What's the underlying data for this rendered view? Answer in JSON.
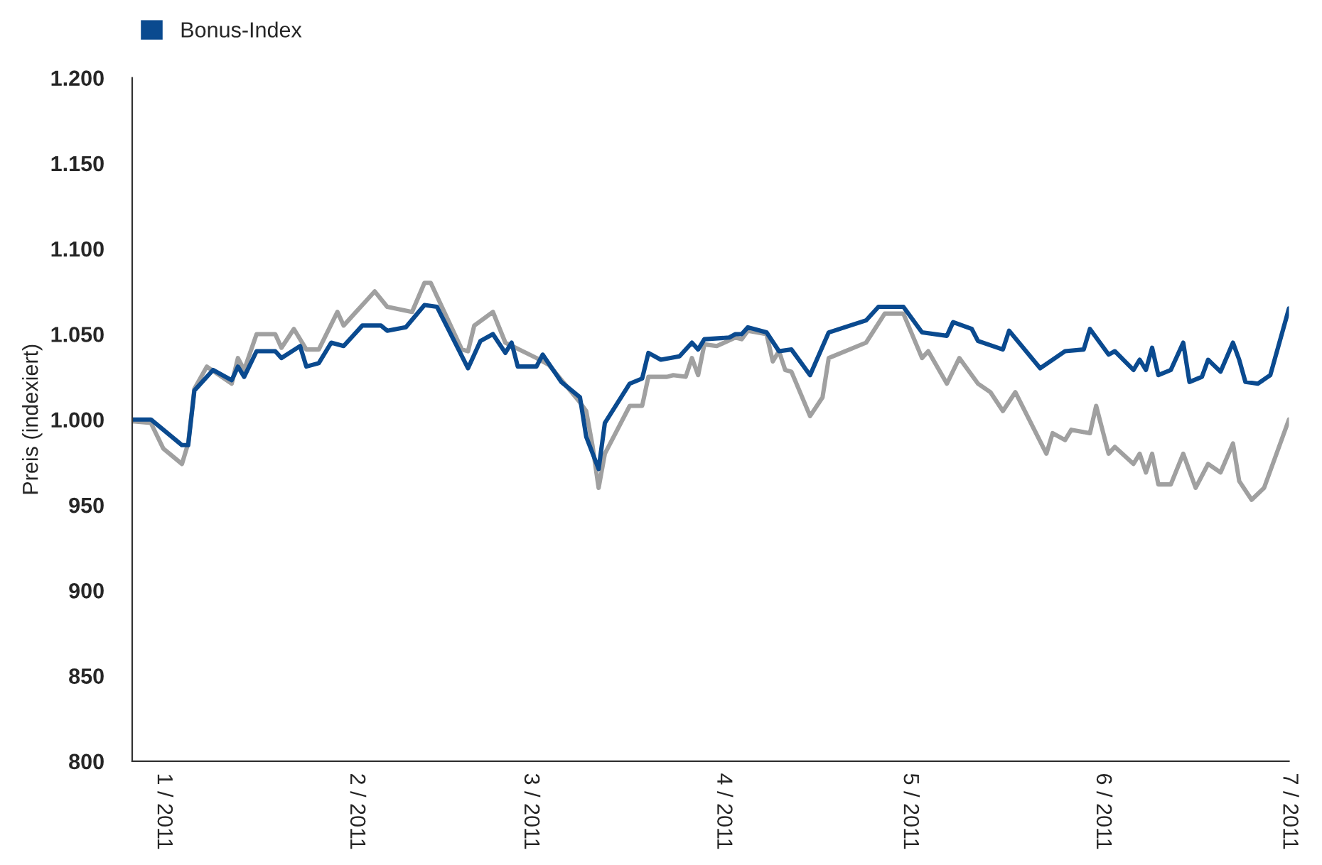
{
  "chart_data": {
    "type": "line",
    "ylabel": "Preis (indexiert)",
    "xlim": [
      "2010-12-27",
      "2011-07-01"
    ],
    "xticks": [
      {
        "value": "2011-01-01",
        "label": "1 / 2011"
      },
      {
        "value": "2011-02-01",
        "label": "2 / 2011"
      },
      {
        "value": "2011-03-01",
        "label": "3 / 2011"
      },
      {
        "value": "2011-04-01",
        "label": "4 / 2011"
      },
      {
        "value": "2011-05-01",
        "label": "5 / 2011"
      },
      {
        "value": "2011-06-01",
        "label": "6 / 2011"
      },
      {
        "value": "2011-07-01",
        "label": "7 / 2011"
      }
    ],
    "ylim": [
      800,
      1200
    ],
    "yticks": [
      {
        "value": 800,
        "label": "800"
      },
      {
        "value": 850,
        "label": "850"
      },
      {
        "value": 900,
        "label": "900"
      },
      {
        "value": 950,
        "label": "950"
      },
      {
        "value": 1000,
        "label": "1.000"
      },
      {
        "value": 1050,
        "label": "1.050"
      },
      {
        "value": 1100,
        "label": "1.100"
      },
      {
        "value": 1150,
        "label": "1.150"
      },
      {
        "value": 1200,
        "label": "1.200"
      }
    ],
    "grid": false,
    "legend": "top left",
    "marker": "none",
    "line_style": "solid",
    "series": [
      {
        "color": "#a0a0a0",
        "x": [
          "2010-12-27",
          "2010-12-30",
          "2011-01-01",
          "2011-01-04",
          "2011-01-05",
          "2011-01-06",
          "2011-01-08",
          "2011-01-12",
          "2011-01-13",
          "2011-01-14",
          "2011-01-16",
          "2011-01-19",
          "2011-01-20",
          "2011-01-22",
          "2011-01-24",
          "2011-01-26",
          "2011-01-29",
          "2011-01-30",
          "2011-02-01",
          "2011-02-04",
          "2011-02-06",
          "2011-02-10",
          "2011-02-12",
          "2011-02-13",
          "2011-02-18",
          "2011-02-19",
          "2011-02-20",
          "2011-02-23",
          "2011-02-25",
          "2011-03-02",
          "2011-03-04",
          "2011-03-09",
          "2011-03-10",
          "2011-03-11",
          "2011-03-12",
          "2011-03-13",
          "2011-03-17",
          "2011-03-19",
          "2011-03-20",
          "2011-03-23",
          "2011-03-24",
          "2011-03-26",
          "2011-03-27",
          "2011-03-28",
          "2011-03-29",
          "2011-03-31",
          "2011-04-03",
          "2011-04-04",
          "2011-04-05",
          "2011-04-08",
          "2011-04-09",
          "2011-04-10",
          "2011-04-11",
          "2011-04-12",
          "2011-04-15",
          "2011-04-17",
          "2011-04-18",
          "2011-04-24",
          "2011-04-27",
          "2011-04-30",
          "2011-05-03",
          "2011-05-04",
          "2011-05-07",
          "2011-05-09",
          "2011-05-12",
          "2011-05-14",
          "2011-05-16",
          "2011-05-18",
          "2011-05-23",
          "2011-05-24",
          "2011-05-26",
          "2011-05-27",
          "2011-05-30",
          "2011-05-31",
          "2011-06-02",
          "2011-06-03",
          "2011-06-06",
          "2011-06-07",
          "2011-06-08",
          "2011-06-09",
          "2011-06-10",
          "2011-06-12",
          "2011-06-14",
          "2011-06-16",
          "2011-06-18",
          "2011-06-20",
          "2011-06-22",
          "2011-06-23",
          "2011-06-25",
          "2011-06-27",
          "2011-07-01"
        ],
        "values": [
          999,
          998,
          983,
          974,
          986,
          1018,
          1031,
          1021,
          1036,
          1029,
          1050,
          1050,
          1042,
          1053,
          1041,
          1041,
          1063,
          1055,
          1063,
          1075,
          1066,
          1063,
          1080,
          1080,
          1041,
          1040,
          1055,
          1063,
          1045,
          1036,
          1032,
          1010,
          1005,
          985,
          960,
          980,
          1008,
          1008,
          1025,
          1025,
          1026,
          1025,
          1036,
          1026,
          1044,
          1043,
          1048,
          1047,
          1052,
          1050,
          1034,
          1040,
          1029,
          1028,
          1002,
          1013,
          1036,
          1045,
          1062,
          1062,
          1036,
          1040,
          1021,
          1036,
          1021,
          1016,
          1005,
          1016,
          980,
          992,
          988,
          994,
          992,
          1008,
          980,
          984,
          974,
          980,
          969,
          980,
          962,
          962,
          980,
          960,
          974,
          969,
          986,
          964,
          953,
          960,
          1000
        ]
      },
      {
        "name": "Bonus-Index",
        "color": "#0a4a8f",
        "x": [
          "2010-12-27",
          "2010-12-30",
          "2011-01-04",
          "2011-01-05",
          "2011-01-06",
          "2011-01-09",
          "2011-01-12",
          "2011-01-13",
          "2011-01-14",
          "2011-01-16",
          "2011-01-19",
          "2011-01-20",
          "2011-01-23",
          "2011-01-24",
          "2011-01-26",
          "2011-01-28",
          "2011-01-30",
          "2011-02-02",
          "2011-02-05",
          "2011-02-06",
          "2011-02-09",
          "2011-02-12",
          "2011-02-14",
          "2011-02-19",
          "2011-02-21",
          "2011-02-23",
          "2011-02-25",
          "2011-02-26",
          "2011-02-27",
          "2011-03-02",
          "2011-03-03",
          "2011-03-06",
          "2011-03-09",
          "2011-03-10",
          "2011-03-12",
          "2011-03-13",
          "2011-03-17",
          "2011-03-19",
          "2011-03-20",
          "2011-03-22",
          "2011-03-25",
          "2011-03-27",
          "2011-03-28",
          "2011-03-29",
          "2011-04-02",
          "2011-04-03",
          "2011-04-04",
          "2011-04-05",
          "2011-04-08",
          "2011-04-10",
          "2011-04-12",
          "2011-04-15",
          "2011-04-18",
          "2011-04-24",
          "2011-04-26",
          "2011-04-30",
          "2011-05-03",
          "2011-05-07",
          "2011-05-08",
          "2011-05-11",
          "2011-05-12",
          "2011-05-16",
          "2011-05-17",
          "2011-05-22",
          "2011-05-26",
          "2011-05-29",
          "2011-05-30",
          "2011-06-02",
          "2011-06-03",
          "2011-06-06",
          "2011-06-07",
          "2011-06-08",
          "2011-06-09",
          "2011-06-10",
          "2011-06-12",
          "2011-06-14",
          "2011-06-15",
          "2011-06-17",
          "2011-06-18",
          "2011-06-20",
          "2011-06-22",
          "2011-06-23",
          "2011-06-24",
          "2011-06-26",
          "2011-06-28",
          "2011-07-01"
        ],
        "values": [
          1000,
          1000,
          985,
          985,
          1017,
          1029,
          1023,
          1031,
          1025,
          1040,
          1040,
          1036,
          1043,
          1031,
          1033,
          1045,
          1043,
          1055,
          1055,
          1052,
          1054,
          1067,
          1066,
          1030,
          1046,
          1050,
          1039,
          1045,
          1031,
          1031,
          1038,
          1022,
          1013,
          990,
          971,
          998,
          1021,
          1024,
          1039,
          1035,
          1037,
          1045,
          1041,
          1047,
          1048,
          1050,
          1050,
          1054,
          1051,
          1040,
          1041,
          1026,
          1051,
          1058,
          1066,
          1066,
          1051,
          1049,
          1057,
          1053,
          1046,
          1041,
          1052,
          1030,
          1040,
          1041,
          1053,
          1038,
          1040,
          1029,
          1035,
          1029,
          1042,
          1026,
          1029,
          1045,
          1022,
          1025,
          1035,
          1028,
          1045,
          1035,
          1022,
          1021,
          1026,
          1065
        ]
      }
    ]
  }
}
